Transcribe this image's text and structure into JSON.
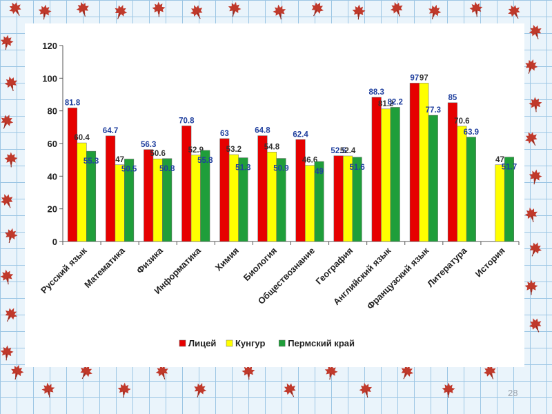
{
  "chart_data": {
    "type": "bar",
    "categories": [
      "Русский язык",
      "Математика",
      "Физика",
      "Информатика",
      "Химия",
      "Биология",
      "Обществознание",
      "География",
      "Английский язык",
      "Французский язык",
      "Литература",
      "История"
    ],
    "series": [
      {
        "name": "Лицей",
        "color": "#e60000",
        "values": [
          81.8,
          64.7,
          56.3,
          70.8,
          63,
          64.8,
          62.4,
          52.5,
          88.3,
          97,
          85,
          null
        ],
        "labels": [
          "81.8",
          "64.7",
          "56.3",
          "70.8",
          "63",
          "64.8",
          "62.4",
          "52.5",
          "88.3",
          "97",
          "85",
          ""
        ]
      },
      {
        "name": "Кунгур",
        "color": "#ffff00",
        "values": [
          60.4,
          47,
          50.6,
          52.9,
          53.2,
          54.8,
          46.6,
          52.4,
          81.2,
          97,
          70.6,
          47
        ],
        "labels": [
          "60.4",
          "47",
          "50.6",
          "52.9",
          "53.2",
          "54.8",
          "46.6",
          "52.4",
          "81.2",
          "97",
          "70.6",
          "47"
        ]
      },
      {
        "name": "Пермский край",
        "color": "#1f9e3a",
        "values": [
          55.3,
          50.5,
          50.8,
          55.8,
          51.3,
          50.9,
          49,
          51.6,
          82.2,
          77.3,
          63.9,
          51.7
        ],
        "labels": [
          "55.3",
          "50.5",
          "50.8",
          "55.8",
          "51.3",
          "50.9",
          "49",
          "51.6",
          "82.2",
          "77.3",
          "63.9",
          "51.7"
        ]
      }
    ],
    "ylim": [
      0,
      120
    ],
    "yticks": [
      "0",
      "20",
      "40",
      "60",
      "80",
      "100",
      "120"
    ],
    "legend_position": "bottom",
    "grid": false
  },
  "slide_number": "28",
  "colors": {
    "frame_grid": "#9cc6e4",
    "leaf": "#c0392b",
    "label_blue": "#1f3f9e"
  },
  "decoration": "maple-leaf-icon"
}
